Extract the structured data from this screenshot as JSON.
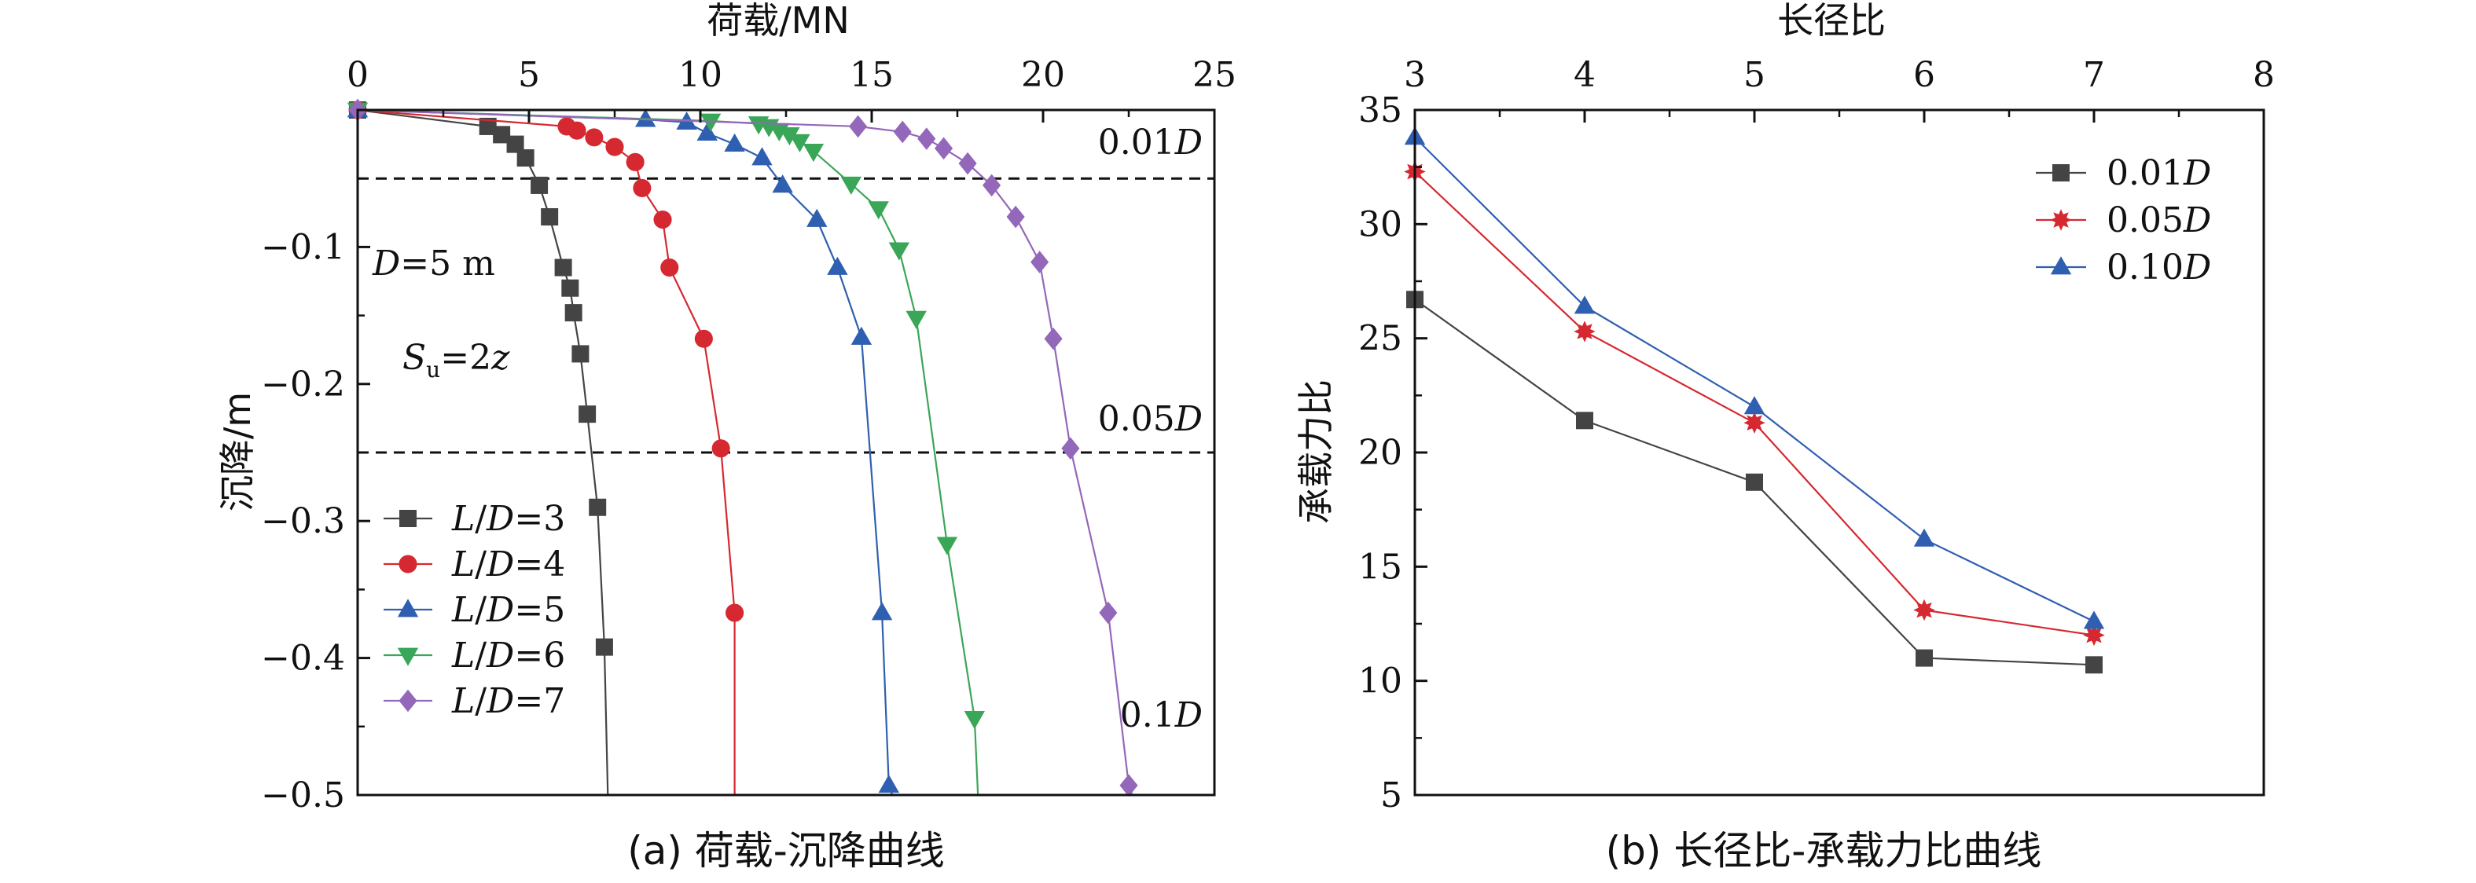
{
  "chart_data": [
    {
      "type": "line",
      "title": "(a) 荷载-沉降曲线",
      "xlabel": "荷载/MN",
      "ylabel": "沉降/m",
      "xlim": [
        0,
        25
      ],
      "ylim": [
        -0.5,
        0
      ],
      "x_ticks": [
        "0",
        "5",
        "10",
        "15",
        "20",
        "25"
      ],
      "y_ticks": [
        "−0.1",
        "−0.2",
        "−0.3",
        "−0.4",
        "−0.5"
      ],
      "reference_lines": [
        {
          "y": -0.05,
          "label_text": "0.01",
          "label_italic": "D"
        },
        {
          "y": -0.25,
          "label_text": "0.05",
          "label_italic": "D"
        }
      ],
      "annotations": {
        "d_italic": "D",
        "d_rest": "=5 m",
        "s_italic": "S",
        "s_sub": "u",
        "s_rest": "=2",
        "s_var": "z",
        "tenth_text": "0.1",
        "tenth_italic": "D"
      },
      "legend_position": "lower-left",
      "series": [
        {
          "name_prefix": "L/D",
          "name_value": "=3",
          "color": "#444444",
          "marker": "square",
          "x": [
            0.0,
            3.8,
            4.2,
            4.6,
            4.9,
            5.3,
            5.6,
            6.0,
            6.2,
            6.3,
            6.5,
            6.7,
            7.0,
            7.2
          ],
          "y": [
            0.0,
            -0.012,
            -0.018,
            -0.025,
            -0.035,
            -0.055,
            -0.078,
            -0.115,
            -0.13,
            -0.148,
            -0.178,
            -0.222,
            -0.29,
            -0.392
          ],
          "curve_end": [
            7.3,
            -0.5
          ]
        },
        {
          "name_prefix": "L/D",
          "name_value": "=4",
          "color": "#d62830",
          "marker": "circle",
          "x": [
            0.0,
            6.1,
            6.4,
            6.9,
            7.5,
            8.1,
            8.3,
            8.9,
            9.1,
            10.1,
            10.6,
            11.0
          ],
          "y": [
            0.0,
            -0.012,
            -0.015,
            -0.02,
            -0.027,
            -0.038,
            -0.057,
            -0.08,
            -0.115,
            -0.167,
            -0.247,
            -0.367
          ],
          "curve_end": [
            11.0,
            -0.5
          ]
        },
        {
          "name_prefix": "L/D",
          "name_value": "=5",
          "color": "#2f5fb0",
          "marker": "triangle-up",
          "x": [
            0.0,
            8.4,
            9.6,
            10.2,
            11.0,
            11.8,
            12.4,
            13.4,
            14.0,
            14.7,
            15.3,
            15.5
          ],
          "y": [
            0.0,
            -0.007,
            -0.009,
            -0.017,
            -0.025,
            -0.035,
            -0.055,
            -0.08,
            -0.115,
            -0.166,
            -0.367,
            -0.493
          ],
          "curve_end": [
            15.6,
            -0.5
          ]
        },
        {
          "name_prefix": "L/D",
          "name_value": "=6",
          "color": "#3aa657",
          "marker": "triangle-down",
          "x": [
            0.0,
            10.3,
            11.7,
            12.0,
            12.3,
            12.6,
            12.9,
            13.3,
            14.4,
            15.2,
            15.8,
            16.3,
            17.2,
            18.0
          ],
          "y": [
            0.0,
            -0.008,
            -0.01,
            -0.012,
            -0.015,
            -0.018,
            -0.023,
            -0.03,
            -0.054,
            -0.072,
            -0.102,
            -0.152,
            -0.317,
            -0.444
          ],
          "curve_end": [
            18.1,
            -0.5
          ]
        },
        {
          "name_prefix": "L/D",
          "name_value": "=7",
          "color": "#9367b9",
          "marker": "diamond",
          "x": [
            0.0,
            14.6,
            15.9,
            16.6,
            17.1,
            17.8,
            18.5,
            19.2,
            19.9,
            20.3,
            20.8,
            21.9,
            22.5
          ],
          "y": [
            0.0,
            -0.012,
            -0.016,
            -0.021,
            -0.028,
            -0.039,
            -0.055,
            -0.078,
            -0.111,
            -0.167,
            -0.247,
            -0.367,
            -0.493
          ],
          "curve_end": [
            22.6,
            -0.5
          ]
        }
      ]
    },
    {
      "type": "line",
      "title": "(b) 长径比-承载力比曲线",
      "xlabel": "长径比",
      "ylabel": "承载力比",
      "xlim": [
        3,
        8
      ],
      "ylim": [
        5,
        35
      ],
      "x_ticks": [
        "3",
        "4",
        "5",
        "6",
        "7",
        "8"
      ],
      "y_ticks": [
        "5",
        "10",
        "15",
        "20",
        "25",
        "30",
        "35"
      ],
      "legend_position": "top-right",
      "categories": [
        3,
        4,
        5,
        6,
        7
      ],
      "series": [
        {
          "name_text": "0.01",
          "name_italic": "D",
          "color": "#444444",
          "marker": "square",
          "values": [
            26.7,
            21.4,
            18.7,
            11.0,
            10.7
          ]
        },
        {
          "name_text": "0.05",
          "name_italic": "D",
          "color": "#d62830",
          "marker": "star",
          "values": [
            32.3,
            25.3,
            21.3,
            13.1,
            12.0
          ]
        },
        {
          "name_text": "0.10",
          "name_italic": "D",
          "color": "#2f5fb0",
          "marker": "triangle-up",
          "values": [
            33.8,
            26.4,
            22.0,
            16.2,
            12.6
          ]
        }
      ]
    }
  ]
}
